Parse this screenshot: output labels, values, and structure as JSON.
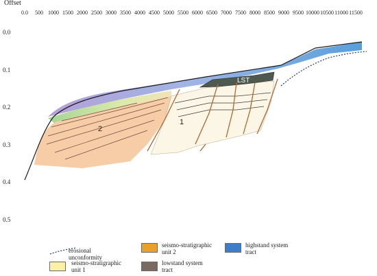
{
  "axis": {
    "title": "Offset",
    "x_ticks": [
      "0.0",
      "500",
      "1000",
      "1500",
      "2000",
      "2500",
      "3000",
      "3500",
      "4000",
      "4500",
      "5000",
      "5500",
      "6000",
      "6500",
      "7000",
      "7500",
      "8000",
      "8500",
      "9000",
      "9500",
      "10000",
      "10500",
      "11000",
      "11500"
    ],
    "y_ticks": [
      "0.0",
      "0.1",
      "0.2",
      "0.3",
      "0.4",
      "0.5"
    ]
  },
  "labels": {
    "unit2": "2",
    "unit1": "1",
    "lst": "LST"
  },
  "legend": {
    "erosional": "erosional\nunconformity",
    "unit2": "seismo-stratigraphic\nunit 2",
    "hst": "highstand system\ntract",
    "unit1": "seismo-stratigraphic\nunit 1",
    "lst": "lowstand system\ntract"
  },
  "colors": {
    "unit2": "#f6cda6",
    "unit1": "#fbf6e6",
    "hst": "#5b9bd5",
    "lst": "#4e5a4f",
    "legend_unit2": "#e8a030",
    "legend_unit1": "#fbf0a4",
    "legend_hst": "#3c7fc8",
    "legend_lst": "#7a6a62",
    "fault": "#b5652e"
  }
}
